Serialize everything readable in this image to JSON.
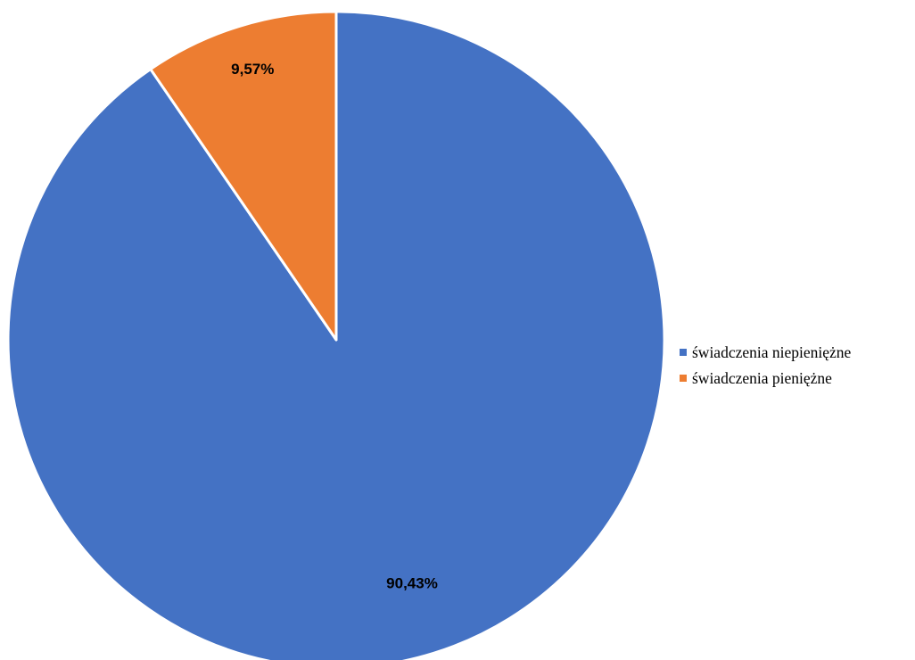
{
  "chart_data": {
    "type": "pie",
    "categories": [
      "świadczenia niepieniężne",
      "świadczenia pieniężne"
    ],
    "values": [
      90.43,
      9.57
    ],
    "data_labels": [
      "90,43%",
      "9,57%"
    ],
    "colors": [
      "#4472C4",
      "#ED7D31"
    ],
    "title": "",
    "legend_position": "right",
    "start_angle_deg": 0,
    "direction": "counterclockwise"
  }
}
